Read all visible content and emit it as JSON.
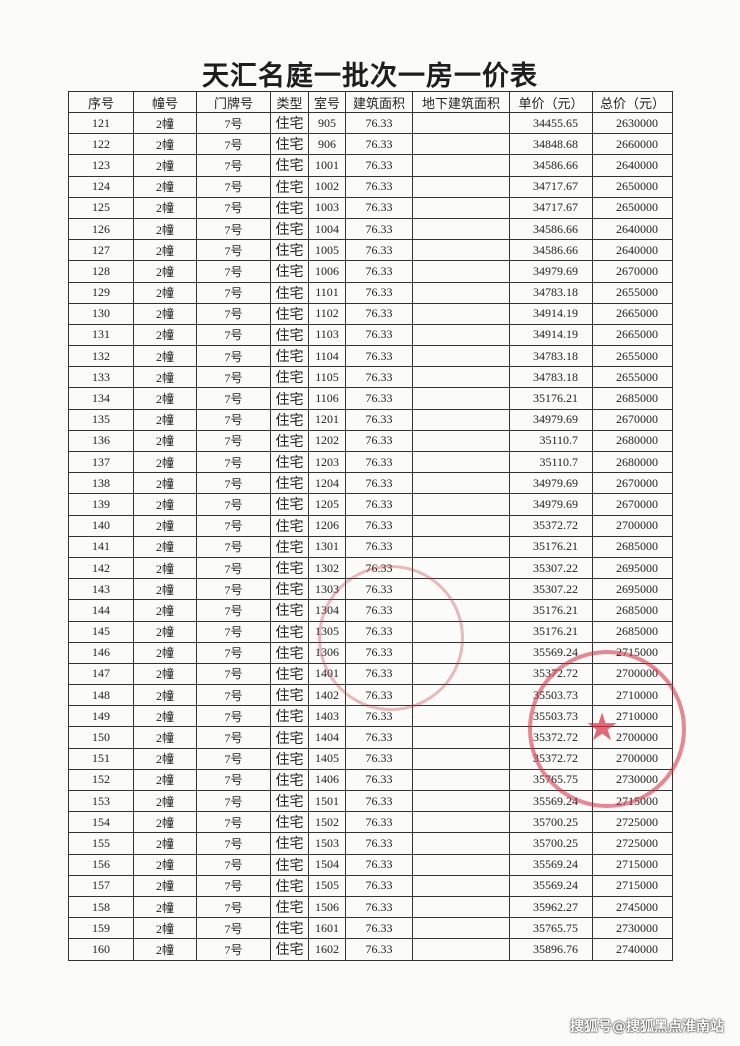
{
  "title": "天汇名庭一批次一房一价表",
  "columns": [
    "序号",
    "幢号",
    "门牌号",
    "类型",
    "室号",
    "建筑面积",
    "地下建筑面积",
    "单价（元）",
    "总价（元）"
  ],
  "rows": [
    [
      "121",
      "2幢",
      "7号",
      "住宅",
      "905",
      "76.33",
      "",
      "34455.65",
      "2630000"
    ],
    [
      "122",
      "2幢",
      "7号",
      "住宅",
      "906",
      "76.33",
      "",
      "34848.68",
      "2660000"
    ],
    [
      "123",
      "2幢",
      "7号",
      "住宅",
      "1001",
      "76.33",
      "",
      "34586.66",
      "2640000"
    ],
    [
      "124",
      "2幢",
      "7号",
      "住宅",
      "1002",
      "76.33",
      "",
      "34717.67",
      "2650000"
    ],
    [
      "125",
      "2幢",
      "7号",
      "住宅",
      "1003",
      "76.33",
      "",
      "34717.67",
      "2650000"
    ],
    [
      "126",
      "2幢",
      "7号",
      "住宅",
      "1004",
      "76.33",
      "",
      "34586.66",
      "2640000"
    ],
    [
      "127",
      "2幢",
      "7号",
      "住宅",
      "1005",
      "76.33",
      "",
      "34586.66",
      "2640000"
    ],
    [
      "128",
      "2幢",
      "7号",
      "住宅",
      "1006",
      "76.33",
      "",
      "34979.69",
      "2670000"
    ],
    [
      "129",
      "2幢",
      "7号",
      "住宅",
      "1101",
      "76.33",
      "",
      "34783.18",
      "2655000"
    ],
    [
      "130",
      "2幢",
      "7号",
      "住宅",
      "1102",
      "76.33",
      "",
      "34914.19",
      "2665000"
    ],
    [
      "131",
      "2幢",
      "7号",
      "住宅",
      "1103",
      "76.33",
      "",
      "34914.19",
      "2665000"
    ],
    [
      "132",
      "2幢",
      "7号",
      "住宅",
      "1104",
      "76.33",
      "",
      "34783.18",
      "2655000"
    ],
    [
      "133",
      "2幢",
      "7号",
      "住宅",
      "1105",
      "76.33",
      "",
      "34783.18",
      "2655000"
    ],
    [
      "134",
      "2幢",
      "7号",
      "住宅",
      "1106",
      "76.33",
      "",
      "35176.21",
      "2685000"
    ],
    [
      "135",
      "2幢",
      "7号",
      "住宅",
      "1201",
      "76.33",
      "",
      "34979.69",
      "2670000"
    ],
    [
      "136",
      "2幢",
      "7号",
      "住宅",
      "1202",
      "76.33",
      "",
      "35110.7",
      "2680000"
    ],
    [
      "137",
      "2幢",
      "7号",
      "住宅",
      "1203",
      "76.33",
      "",
      "35110.7",
      "2680000"
    ],
    [
      "138",
      "2幢",
      "7号",
      "住宅",
      "1204",
      "76.33",
      "",
      "34979.69",
      "2670000"
    ],
    [
      "139",
      "2幢",
      "7号",
      "住宅",
      "1205",
      "76.33",
      "",
      "34979.69",
      "2670000"
    ],
    [
      "140",
      "2幢",
      "7号",
      "住宅",
      "1206",
      "76.33",
      "",
      "35372.72",
      "2700000"
    ],
    [
      "141",
      "2幢",
      "7号",
      "住宅",
      "1301",
      "76.33",
      "",
      "35176.21",
      "2685000"
    ],
    [
      "142",
      "2幢",
      "7号",
      "住宅",
      "1302",
      "76.33",
      "",
      "35307.22",
      "2695000"
    ],
    [
      "143",
      "2幢",
      "7号",
      "住宅",
      "1303",
      "76.33",
      "",
      "35307.22",
      "2695000"
    ],
    [
      "144",
      "2幢",
      "7号",
      "住宅",
      "1304",
      "76.33",
      "",
      "35176.21",
      "2685000"
    ],
    [
      "145",
      "2幢",
      "7号",
      "住宅",
      "1305",
      "76.33",
      "",
      "35176.21",
      "2685000"
    ],
    [
      "146",
      "2幢",
      "7号",
      "住宅",
      "1306",
      "76.33",
      "",
      "35569.24",
      "2715000"
    ],
    [
      "147",
      "2幢",
      "7号",
      "住宅",
      "1401",
      "76.33",
      "",
      "35372.72",
      "2700000"
    ],
    [
      "148",
      "2幢",
      "7号",
      "住宅",
      "1402",
      "76.33",
      "",
      "35503.73",
      "2710000"
    ],
    [
      "149",
      "2幢",
      "7号",
      "住宅",
      "1403",
      "76.33",
      "",
      "35503.73",
      "2710000"
    ],
    [
      "150",
      "2幢",
      "7号",
      "住宅",
      "1404",
      "76.33",
      "",
      "35372.72",
      "2700000"
    ],
    [
      "151",
      "2幢",
      "7号",
      "住宅",
      "1405",
      "76.33",
      "",
      "35372.72",
      "2700000"
    ],
    [
      "152",
      "2幢",
      "7号",
      "住宅",
      "1406",
      "76.33",
      "",
      "35765.75",
      "2730000"
    ],
    [
      "153",
      "2幢",
      "7号",
      "住宅",
      "1501",
      "76.33",
      "",
      "35569.24",
      "2715000"
    ],
    [
      "154",
      "2幢",
      "7号",
      "住宅",
      "1502",
      "76.33",
      "",
      "35700.25",
      "2725000"
    ],
    [
      "155",
      "2幢",
      "7号",
      "住宅",
      "1503",
      "76.33",
      "",
      "35700.25",
      "2725000"
    ],
    [
      "156",
      "2幢",
      "7号",
      "住宅",
      "1504",
      "76.33",
      "",
      "35569.24",
      "2715000"
    ],
    [
      "157",
      "2幢",
      "7号",
      "住宅",
      "1505",
      "76.33",
      "",
      "35569.24",
      "2715000"
    ],
    [
      "158",
      "2幢",
      "7号",
      "住宅",
      "1506",
      "76.33",
      "",
      "35962.27",
      "2745000"
    ],
    [
      "159",
      "2幢",
      "7号",
      "住宅",
      "1601",
      "76.33",
      "",
      "35765.75",
      "2730000"
    ],
    [
      "160",
      "2幢",
      "7号",
      "住宅",
      "1602",
      "76.33",
      "",
      "35896.76",
      "2740000"
    ]
  ],
  "watermark": "搜狐号@搜狐黑点淮南站",
  "colors": {
    "stamp": "#d8283c"
  }
}
